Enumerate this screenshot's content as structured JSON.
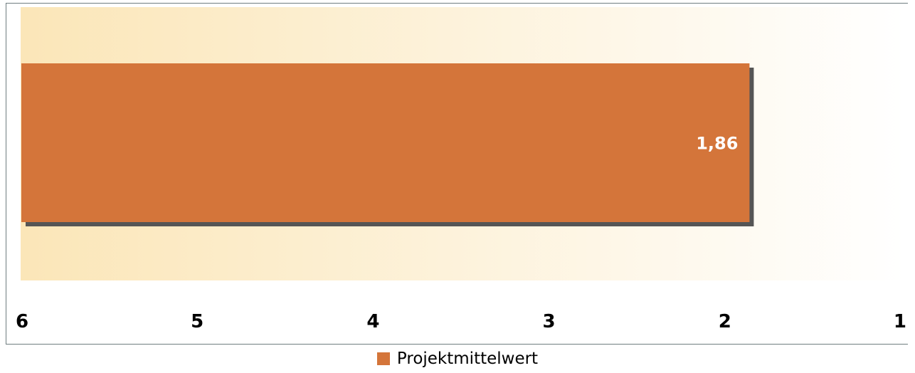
{
  "chart_data": {
    "type": "bar",
    "orientation": "horizontal",
    "categories": [
      ""
    ],
    "series": [
      {
        "name": "Projektmittelwert",
        "values": [
          1.86
        ],
        "color": "#d4753a"
      }
    ],
    "data_labels": [
      "1,86"
    ],
    "x_axis": {
      "min": 1,
      "max": 6,
      "reversed": true,
      "ticks": [
        "6",
        "5",
        "4",
        "3",
        "2",
        "1"
      ]
    },
    "plot_background": {
      "gradient_from": "#fbe6b8",
      "gradient_to": "#ffffff"
    },
    "grid": false,
    "legend_position": "bottom"
  }
}
